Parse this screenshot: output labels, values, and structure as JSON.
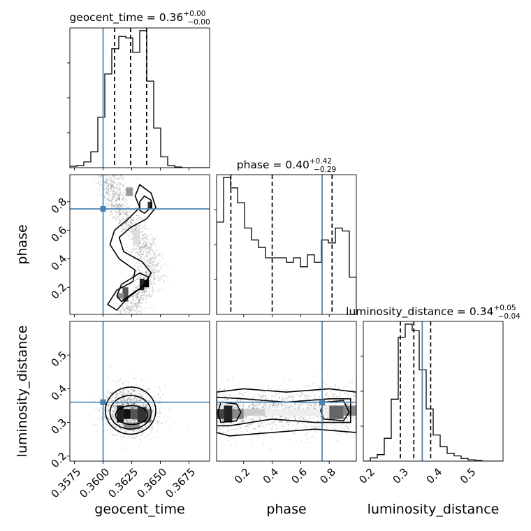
{
  "chart_data": {
    "type": "corner",
    "parameters": [
      "geocent_time",
      "phase",
      "luminosity_distance"
    ],
    "titles": [
      {
        "param": "geocent_time",
        "prefix": "geocent_time = ",
        "median": "0.36",
        "plus": "+0.00",
        "minus": "−0.00"
      },
      {
        "param": "phase",
        "prefix": "phase = ",
        "median": "0.40",
        "plus": "+0.42",
        "minus": "−0.29"
      },
      {
        "param": "luminosity_distance",
        "prefix": "luminosity_distance = ",
        "median": "0.34",
        "plus": "+0.05",
        "minus": "−0.04"
      }
    ],
    "ranges": {
      "geocent_time": [
        0.3571,
        0.3693
      ],
      "phase": [
        0.01,
        0.99
      ],
      "luminosity_distance": [
        0.185,
        0.6
      ]
    },
    "ticks": {
      "geocent_time": {
        "values": [
          0.3575,
          0.36,
          0.3625,
          0.365,
          0.3675
        ],
        "labels": [
          "0.3575",
          "0.3600",
          "0.3625",
          "0.3650",
          "0.3675"
        ]
      },
      "phase": {
        "values": [
          0.2,
          0.4,
          0.6,
          0.8
        ],
        "labels": [
          "0.2",
          "0.4",
          "0.6",
          "0.8"
        ]
      },
      "luminosity_distance": {
        "values": [
          0.2,
          0.3,
          0.4,
          0.5
        ],
        "labels": [
          "0.2",
          "0.3",
          "0.4",
          "0.5"
        ]
      }
    },
    "truths": {
      "geocent_time": 0.36,
      "phase": 0.75,
      "luminosity_distance": 0.36
    },
    "quantiles": {
      "geocent_time": [
        0.361,
        0.3624,
        0.3638
      ],
      "phase": [
        0.11,
        0.4,
        0.82
      ],
      "luminosity_distance": [
        0.295,
        0.335,
        0.385
      ]
    },
    "histograms": {
      "geocent_time": {
        "edges": [
          0.3571,
          0.35771,
          0.35832,
          0.35893,
          0.35954,
          0.36015,
          0.36076,
          0.36137,
          0.36198,
          0.36259,
          0.3632,
          0.36381,
          0.36442,
          0.36503,
          0.36564,
          0.36625,
          0.36686,
          0.36747,
          0.36808,
          0.36869,
          0.3693
        ],
        "counts": [
          2,
          3,
          8,
          22,
          70,
          130,
          165,
          182,
          180,
          160,
          190,
          120,
          55,
          15,
          3,
          1,
          0,
          0,
          0,
          0
        ]
      },
      "phase": {
        "edges": [
          0.01,
          0.059,
          0.108,
          0.157,
          0.206,
          0.255,
          0.304,
          0.353,
          0.402,
          0.451,
          0.5,
          0.549,
          0.598,
          0.647,
          0.696,
          0.745,
          0.794,
          0.843,
          0.892,
          0.941,
          0.99
        ],
        "counts": [
          62,
          92,
          85,
          75,
          58,
          50,
          45,
          38,
          38,
          38,
          35,
          38,
          32,
          40,
          35,
          50,
          48,
          58,
          56,
          25
        ]
      },
      "luminosity_distance": {
        "edges": [
          0.185,
          0.20575,
          0.2265,
          0.24725,
          0.268,
          0.28875,
          0.3095,
          0.33025,
          0.351,
          0.37175,
          0.3925,
          0.41325,
          0.434,
          0.45475,
          0.4755,
          0.49625,
          0.517,
          0.53775,
          0.5585,
          0.57925,
          0.6
        ],
        "counts": [
          0,
          5,
          10,
          35,
          95,
          190,
          210,
          200,
          140,
          80,
          40,
          22,
          12,
          8,
          4,
          2,
          1,
          0,
          0,
          0
        ]
      }
    },
    "grid": true
  }
}
